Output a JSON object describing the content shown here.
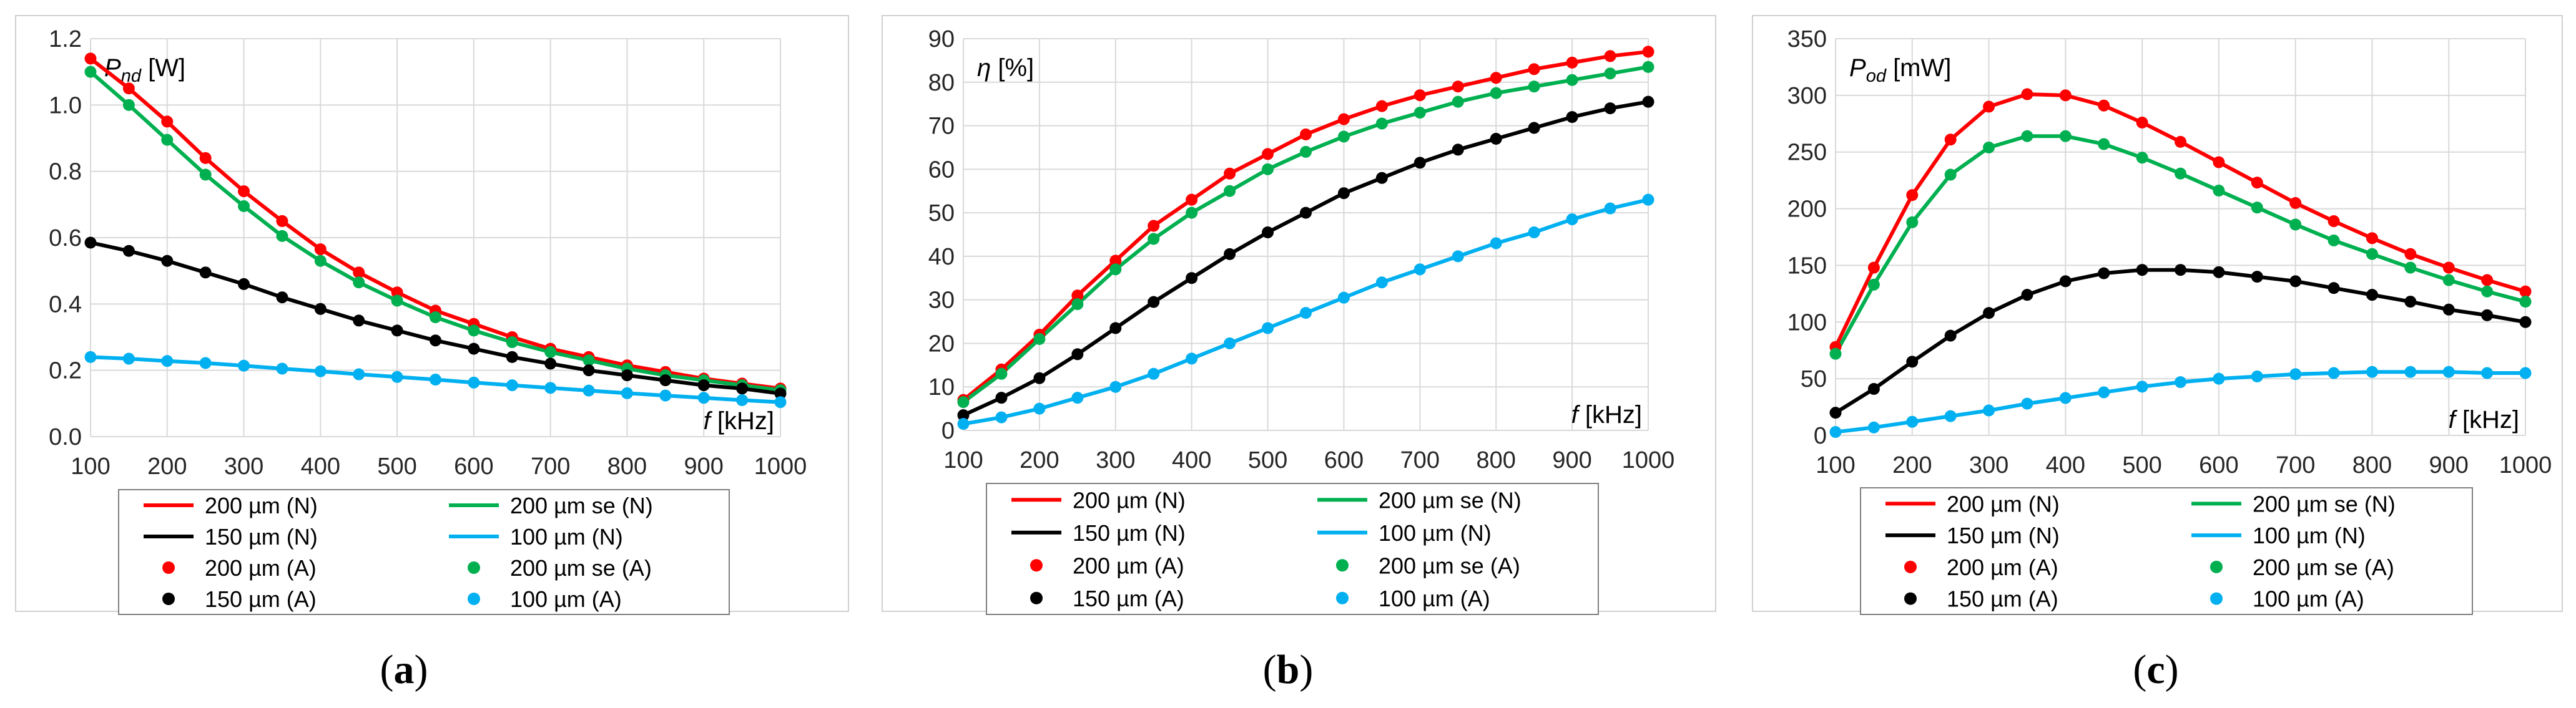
{
  "chart_data": [
    {
      "type": "line",
      "caption": "(a)",
      "caption_letter": "a",
      "ylabel": {
        "symbol": "P",
        "subscript": "nd",
        "unit": "[W]"
      },
      "xlabel": {
        "symbol": "f",
        "unit": "[kHz]"
      },
      "ylim": [
        0,
        1.2
      ],
      "yticks": [
        "0.0",
        "0.2",
        "0.4",
        "0.6",
        "0.8",
        "1.0",
        "1.2"
      ],
      "xlim": [
        100,
        1000
      ],
      "xticks": [
        "100",
        "200",
        "300",
        "400",
        "500",
        "600",
        "700",
        "800",
        "900",
        "1000"
      ],
      "x": [
        100,
        150,
        200,
        250,
        300,
        350,
        400,
        450,
        500,
        550,
        600,
        650,
        700,
        750,
        800,
        850,
        900,
        950,
        1000
      ],
      "series": [
        {
          "name": "200 µm (N)",
          "style": "line",
          "color": "#ff0000",
          "values": [
            1.14,
            1.05,
            0.95,
            0.84,
            0.74,
            0.65,
            0.565,
            0.495,
            0.435,
            0.38,
            0.34,
            0.3,
            0.265,
            0.24,
            0.215,
            0.195,
            0.175,
            0.16,
            0.145
          ]
        },
        {
          "name": "200 µm se (N)",
          "style": "line",
          "color": "#00b050",
          "values": [
            1.1,
            1.0,
            0.895,
            0.79,
            0.695,
            0.605,
            0.53,
            0.465,
            0.41,
            0.36,
            0.32,
            0.285,
            0.255,
            0.23,
            0.205,
            0.185,
            0.17,
            0.155,
            0.14
          ]
        },
        {
          "name": "150 µm (N)",
          "style": "line",
          "color": "#000000",
          "values": [
            0.585,
            0.56,
            0.53,
            0.495,
            0.46,
            0.42,
            0.385,
            0.35,
            0.32,
            0.29,
            0.265,
            0.24,
            0.22,
            0.2,
            0.185,
            0.17,
            0.155,
            0.145,
            0.13
          ]
        },
        {
          "name": "100 µm (N)",
          "style": "line",
          "color": "#00b0f0",
          "values": [
            0.24,
            0.235,
            0.228,
            0.222,
            0.214,
            0.205,
            0.197,
            0.188,
            0.18,
            0.172,
            0.163,
            0.155,
            0.147,
            0.139,
            0.131,
            0.124,
            0.117,
            0.11,
            0.104
          ]
        },
        {
          "name": "200 µm (A)",
          "style": "marker",
          "color": "#ff0000",
          "values": [
            1.14,
            1.05,
            0.95,
            0.84,
            0.74,
            0.65,
            0.565,
            0.495,
            0.435,
            0.38,
            0.34,
            0.3,
            0.265,
            0.24,
            0.215,
            0.195,
            0.175,
            0.16,
            0.145
          ]
        },
        {
          "name": "200 µm se (A)",
          "style": "marker",
          "color": "#00b050",
          "values": [
            1.1,
            1.0,
            0.895,
            0.79,
            0.695,
            0.605,
            0.53,
            0.465,
            0.41,
            0.36,
            0.32,
            0.285,
            0.255,
            0.23,
            0.205,
            0.185,
            0.17,
            0.155,
            0.14
          ]
        },
        {
          "name": "150 µm (A)",
          "style": "marker",
          "color": "#000000",
          "values": [
            0.585,
            0.56,
            0.53,
            0.495,
            0.46,
            0.42,
            0.385,
            0.35,
            0.32,
            0.29,
            0.265,
            0.24,
            0.22,
            0.2,
            0.185,
            0.17,
            0.155,
            0.145,
            0.13
          ]
        },
        {
          "name": "100 µm (A)",
          "style": "marker",
          "color": "#00b0f0",
          "values": [
            0.24,
            0.235,
            0.228,
            0.222,
            0.214,
            0.205,
            0.197,
            0.188,
            0.18,
            0.172,
            0.163,
            0.155,
            0.147,
            0.139,
            0.131,
            0.124,
            0.117,
            0.11,
            0.104
          ]
        }
      ],
      "legend_position": "bottom",
      "grid": true
    },
    {
      "type": "line",
      "caption": "(b)",
      "caption_letter": "b",
      "ylabel": {
        "symbol": "η",
        "subscript": "",
        "unit": "[%]"
      },
      "xlabel": {
        "symbol": "f",
        "unit": "[kHz]"
      },
      "ylim": [
        0,
        90
      ],
      "yticks": [
        "0",
        "10",
        "20",
        "30",
        "40",
        "50",
        "60",
        "70",
        "80",
        "90"
      ],
      "xlim": [
        100,
        1000
      ],
      "xticks": [
        "100",
        "200",
        "300",
        "400",
        "500",
        "600",
        "700",
        "800",
        "900",
        "1000"
      ],
      "x": [
        100,
        150,
        200,
        250,
        300,
        350,
        400,
        450,
        500,
        550,
        600,
        650,
        700,
        750,
        800,
        850,
        900,
        950,
        1000
      ],
      "series": [
        {
          "name": "200 µm (N)",
          "style": "line",
          "color": "#ff0000",
          "values": [
            7,
            14,
            22,
            31,
            39,
            47,
            53,
            59,
            63.5,
            68,
            71.5,
            74.5,
            77,
            79,
            81,
            83,
            84.5,
            86,
            87
          ]
        },
        {
          "name": "200 µm se (N)",
          "style": "line",
          "color": "#00b050",
          "values": [
            6.5,
            13,
            21,
            29,
            37,
            44,
            50,
            55,
            60,
            64,
            67.5,
            70.5,
            73,
            75.5,
            77.5,
            79,
            80.5,
            82,
            83.5
          ]
        },
        {
          "name": "150 µm (N)",
          "style": "line",
          "color": "#000000",
          "values": [
            3.5,
            7.5,
            12,
            17.5,
            23.5,
            29.5,
            35,
            40.5,
            45.5,
            50,
            54.5,
            58,
            61.5,
            64.5,
            67,
            69.5,
            72,
            74,
            75.5
          ]
        },
        {
          "name": "100 µm (N)",
          "style": "line",
          "color": "#00b0f0",
          "values": [
            1.5,
            3,
            5,
            7.5,
            10,
            13,
            16.5,
            20,
            23.5,
            27,
            30.5,
            34,
            37,
            40,
            43,
            45.5,
            48.5,
            51,
            53
          ]
        },
        {
          "name": "200 µm (A)",
          "style": "marker",
          "color": "#ff0000",
          "values": [
            7,
            14,
            22,
            31,
            39,
            47,
            53,
            59,
            63.5,
            68,
            71.5,
            74.5,
            77,
            79,
            81,
            83,
            84.5,
            86,
            87
          ]
        },
        {
          "name": "200 µm se (A)",
          "style": "marker",
          "color": "#00b050",
          "values": [
            6.5,
            13,
            21,
            29,
            37,
            44,
            50,
            55,
            60,
            64,
            67.5,
            70.5,
            73,
            75.5,
            77.5,
            79,
            80.5,
            82,
            83.5
          ]
        },
        {
          "name": "150 µm (A)",
          "style": "marker",
          "color": "#000000",
          "values": [
            3.5,
            7.5,
            12,
            17.5,
            23.5,
            29.5,
            35,
            40.5,
            45.5,
            50,
            54.5,
            58,
            61.5,
            64.5,
            67,
            69.5,
            72,
            74,
            75.5
          ]
        },
        {
          "name": "100 µm (A)",
          "style": "marker",
          "color": "#00b0f0",
          "values": [
            1.5,
            3,
            5,
            7.5,
            10,
            13,
            16.5,
            20,
            23.5,
            27,
            30.5,
            34,
            37,
            40,
            43,
            45.5,
            48.5,
            51,
            53
          ]
        }
      ],
      "legend_position": "bottom",
      "grid": true
    },
    {
      "type": "line",
      "caption": "(c)",
      "caption_letter": "c",
      "ylabel": {
        "symbol": "P",
        "subscript": "od",
        "unit": "[mW]"
      },
      "xlabel": {
        "symbol": "f",
        "unit": "[kHz]"
      },
      "ylim": [
        0,
        350
      ],
      "yticks": [
        "0",
        "50",
        "100",
        "150",
        "200",
        "250",
        "300",
        "350"
      ],
      "xlim": [
        100,
        1000
      ],
      "xticks": [
        "100",
        "200",
        "300",
        "400",
        "500",
        "600",
        "700",
        "800",
        "900",
        "1000"
      ],
      "x": [
        100,
        150,
        200,
        250,
        300,
        350,
        400,
        450,
        500,
        550,
        600,
        650,
        700,
        750,
        800,
        850,
        900,
        950,
        1000
      ],
      "series": [
        {
          "name": "200 µm (N)",
          "style": "line",
          "color": "#ff0000",
          "values": [
            78,
            148,
            212,
            261,
            290,
            301,
            300,
            291,
            276,
            259,
            241,
            223,
            205,
            189,
            174,
            160,
            148,
            137,
            127
          ]
        },
        {
          "name": "200 µm se (N)",
          "style": "line",
          "color": "#00b050",
          "values": [
            72,
            133,
            188,
            230,
            254,
            264,
            264,
            257,
            245,
            231,
            216,
            201,
            186,
            172,
            160,
            148,
            137,
            127,
            118
          ]
        },
        {
          "name": "150 µm (N)",
          "style": "line",
          "color": "#000000",
          "values": [
            20,
            41,
            65,
            88,
            108,
            124,
            136,
            143,
            146,
            146,
            144,
            140,
            136,
            130,
            124,
            118,
            111,
            106,
            100
          ]
        },
        {
          "name": "100 µm (N)",
          "style": "line",
          "color": "#00b0f0",
          "values": [
            3,
            7,
            12,
            17,
            22,
            28,
            33,
            38,
            43,
            47,
            50,
            52,
            54,
            55,
            56,
            56,
            56,
            55,
            55
          ]
        },
        {
          "name": "200 µm (A)",
          "style": "marker",
          "color": "#ff0000",
          "values": [
            78,
            148,
            212,
            261,
            290,
            301,
            300,
            291,
            276,
            259,
            241,
            223,
            205,
            189,
            174,
            160,
            148,
            137,
            127
          ]
        },
        {
          "name": "200 µm se (A)",
          "style": "marker",
          "color": "#00b050",
          "values": [
            72,
            133,
            188,
            230,
            254,
            264,
            264,
            257,
            245,
            231,
            216,
            201,
            186,
            172,
            160,
            148,
            137,
            127,
            118
          ]
        },
        {
          "name": "150 µm (A)",
          "style": "marker",
          "color": "#000000",
          "values": [
            20,
            41,
            65,
            88,
            108,
            124,
            136,
            143,
            146,
            146,
            144,
            140,
            136,
            130,
            124,
            118,
            111,
            106,
            100
          ]
        },
        {
          "name": "100 µm (A)",
          "style": "marker",
          "color": "#00b0f0",
          "values": [
            3,
            7,
            12,
            17,
            22,
            28,
            33,
            38,
            43,
            47,
            50,
            52,
            54,
            55,
            56,
            56,
            56,
            55,
            55
          ]
        }
      ],
      "legend_position": "bottom",
      "grid": true
    }
  ]
}
